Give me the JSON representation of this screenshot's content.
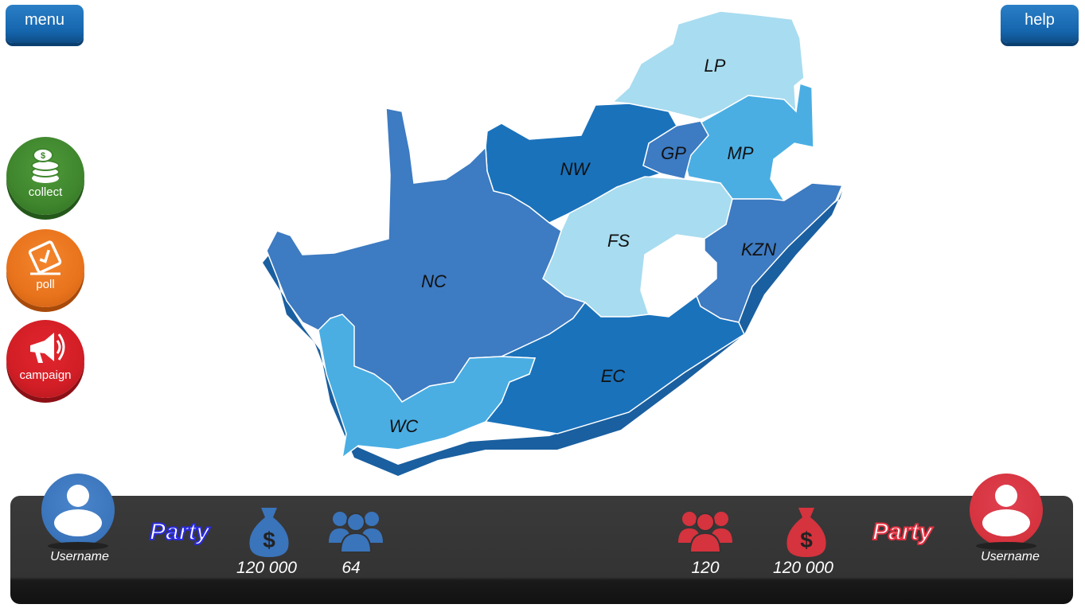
{
  "top_bar": {
    "menu_label": "menu",
    "help_label": "help"
  },
  "actions": [
    {
      "label": "collect",
      "icon": "coins-icon",
      "color": "#3f862d"
    },
    {
      "label": "poll",
      "icon": "ballot-icon",
      "color": "#e8731c"
    },
    {
      "label": "campaign",
      "icon": "megaphone-icon",
      "color": "#d21e26"
    }
  ],
  "map": {
    "provinces": [
      {
        "code": "LP",
        "color": "#a8dcf0"
      },
      {
        "code": "MP",
        "color": "#4aaee3"
      },
      {
        "code": "GP",
        "color": "#3d7bc2"
      },
      {
        "code": "NW",
        "color": "#1a72bb"
      },
      {
        "code": "FS",
        "color": "#a8dcf0"
      },
      {
        "code": "KZN",
        "color": "#3d7bc2"
      },
      {
        "code": "NC",
        "color": "#3d7bc2"
      },
      {
        "code": "EC",
        "color": "#1a72bb"
      },
      {
        "code": "WC",
        "color": "#4aaee3"
      }
    ]
  },
  "player1": {
    "username": "Username",
    "party": "Party",
    "money": "120 000",
    "supporters": "64",
    "color": "#3a74bb"
  },
  "player2": {
    "username": "Username",
    "party": "Party",
    "money": "120 000",
    "supporters": "120",
    "color": "#d5333e"
  }
}
